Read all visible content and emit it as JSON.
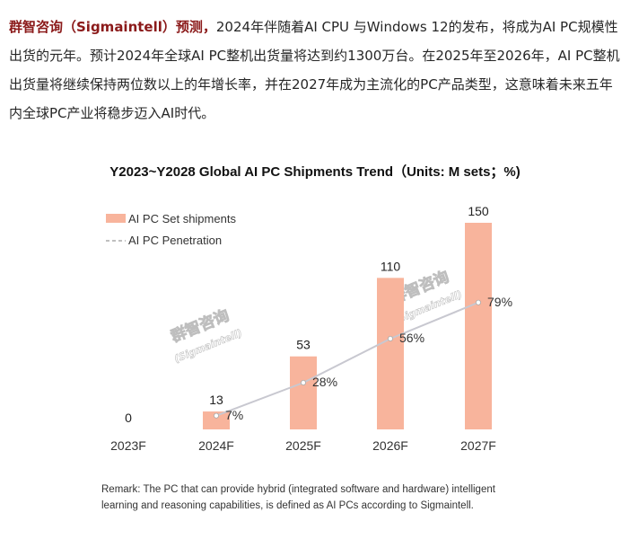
{
  "intro": {
    "lead": "群智咨询（Sigmaintell）预测，",
    "text": "2024年伴随着AI CPU 与Windows 12的发布，将成为AI PC规模性出货的元年。预计2024年全球AI PC整机出货量将达到约1300万台。在2025年至2026年，AI PC整机出货量将继续保持两位数以上的年增长率，并在2027年成为主流化的PC产品类型，这意味着未来五年内全球PC产业将稳步迈入AI时代。"
  },
  "chart_data": {
    "type": "bar",
    "title": "Y2023~Y2028 Global AI PC Shipments Trend（Units: M sets；%)",
    "categories": [
      "2023F",
      "2024F",
      "2025F",
      "2026F",
      "2027F"
    ],
    "series": [
      {
        "name": "AI PC Set shipments",
        "type": "bar",
        "values": [
          0,
          13,
          53,
          110,
          150
        ],
        "labels": [
          "0",
          "13",
          "53",
          "110",
          "150"
        ],
        "color": "#f8b49c"
      },
      {
        "name": "AI PC Penetration",
        "type": "line",
        "values": [
          7,
          28,
          56,
          79
        ],
        "x": [
          "2024F",
          "2025F",
          "2026F",
          "2027F"
        ],
        "labels": [
          "7%",
          "28%",
          "56%",
          "79%"
        ],
        "unit": "%",
        "color": "#c8c8d0"
      }
    ],
    "ylim": [
      0,
      150
    ],
    "grid": false,
    "legend": "top-left"
  },
  "watermark": {
    "name": "群智咨询",
    "latin": "(Sigmaintell)"
  },
  "remark": "Remark: The PC that can provide hybrid (integrated software and hardware) intelligent learning and reasoning capabilities, is defined as AI PCs according to Sigmaintell."
}
